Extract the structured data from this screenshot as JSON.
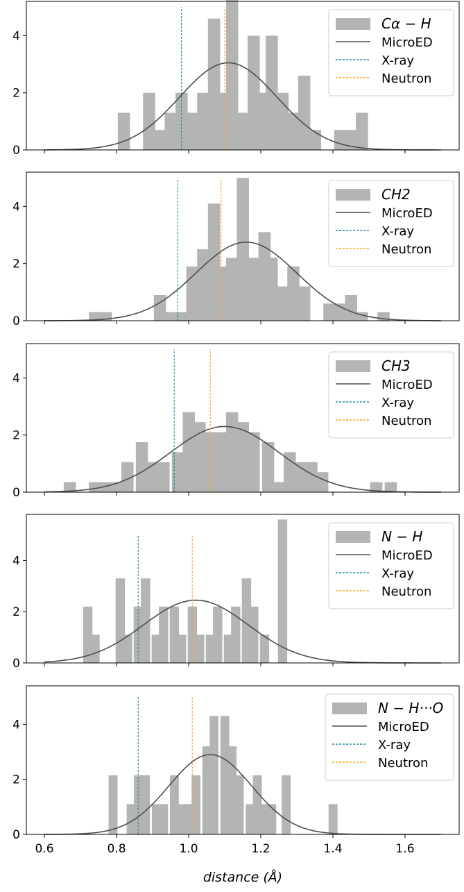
{
  "xlabel": "distance (Å)",
  "legend_common": [
    "MicroED",
    "X-ray",
    "Neutron"
  ],
  "colors": {
    "hist": "#b4b4b4",
    "fit": "#4d4d4d",
    "xray": "#1f8a9a",
    "neutron": "#f2a51a",
    "axis": "#000000"
  },
  "chart_data": [
    {
      "type": "bar",
      "panel_title": "Cα − H",
      "xlim": [
        0.55,
        1.75
      ],
      "ylim": [
        0,
        5.2
      ],
      "yticks": [
        0,
        2,
        4
      ],
      "bin_width": 0.033,
      "bins": [
        [
          0.82,
          1.3
        ],
        [
          0.89,
          2.0
        ],
        [
          0.92,
          0.7
        ],
        [
          0.95,
          1.3
        ],
        [
          0.98,
          2.0
        ],
        [
          1.01,
          1.3
        ],
        [
          1.04,
          2.0
        ],
        [
          1.07,
          4.6
        ],
        [
          1.09,
          2.0
        ],
        [
          1.12,
          5.3
        ],
        [
          1.15,
          1.3
        ],
        [
          1.18,
          4.0
        ],
        [
          1.21,
          2.0
        ],
        [
          1.23,
          4.0
        ],
        [
          1.26,
          2.0
        ],
        [
          1.29,
          1.3
        ],
        [
          1.32,
          2.6
        ],
        [
          1.35,
          0.7
        ],
        [
          1.42,
          0.7
        ],
        [
          1.45,
          0.7
        ],
        [
          1.48,
          1.3
        ]
      ],
      "gauss": {
        "mu": 1.11,
        "sigma": 0.135,
        "peak": 3.05
      },
      "xray_line": {
        "x": 0.98,
        "top": 5.0
      },
      "neutron_line": {
        "x": 1.1,
        "top": 5.0
      },
      "legend": [
        "Cα − H",
        "MicroED",
        "X-ray",
        "Neutron"
      ]
    },
    {
      "type": "bar",
      "panel_title": "CH2",
      "xlim": [
        0.55,
        1.75
      ],
      "ylim": [
        0,
        5.2
      ],
      "yticks": [
        0,
        2,
        4
      ],
      "bin_width": 0.033,
      "bins": [
        [
          0.74,
          0.3
        ],
        [
          0.77,
          0.3
        ],
        [
          0.92,
          0.9
        ],
        [
          0.95,
          0.3
        ],
        [
          0.98,
          0.3
        ],
        [
          1.01,
          1.9
        ],
        [
          1.04,
          2.5
        ],
        [
          1.07,
          4.1
        ],
        [
          1.09,
          1.9
        ],
        [
          1.12,
          2.2
        ],
        [
          1.15,
          5.0
        ],
        [
          1.18,
          2.2
        ],
        [
          1.21,
          3.1
        ],
        [
          1.23,
          2.2
        ],
        [
          1.26,
          1.2
        ],
        [
          1.29,
          1.9
        ],
        [
          1.32,
          1.2
        ],
        [
          1.39,
          0.6
        ],
        [
          1.42,
          0.6
        ],
        [
          1.45,
          0.9
        ],
        [
          1.48,
          0.3
        ],
        [
          1.54,
          0.3
        ]
      ],
      "gauss": {
        "mu": 1.16,
        "sigma": 0.14,
        "peak": 2.75
      },
      "xray_line": {
        "x": 0.97,
        "top": 5.0
      },
      "neutron_line": {
        "x": 1.09,
        "top": 5.0
      },
      "legend": [
        "CH2",
        "MicroED",
        "X-ray",
        "Neutron"
      ]
    },
    {
      "type": "bar",
      "panel_title": "CH3",
      "xlim": [
        0.55,
        1.75
      ],
      "ylim": [
        0,
        5.2
      ],
      "yticks": [
        0,
        2,
        4
      ],
      "bin_width": 0.033,
      "bins": [
        [
          0.67,
          0.35
        ],
        [
          0.74,
          0.35
        ],
        [
          0.77,
          0.35
        ],
        [
          0.8,
          0.35
        ],
        [
          0.83,
          1.05
        ],
        [
          0.87,
          1.75
        ],
        [
          0.9,
          1.05
        ],
        [
          0.93,
          1.05
        ],
        [
          0.97,
          1.4
        ],
        [
          1.0,
          2.8
        ],
        [
          1.03,
          2.45
        ],
        [
          1.06,
          2.1
        ],
        [
          1.09,
          2.1
        ],
        [
          1.12,
          2.8
        ],
        [
          1.15,
          2.45
        ],
        [
          1.18,
          2.1
        ],
        [
          1.22,
          1.75
        ],
        [
          1.25,
          0.35
        ],
        [
          1.28,
          1.4
        ],
        [
          1.31,
          1.05
        ],
        [
          1.34,
          1.05
        ],
        [
          1.37,
          0.7
        ],
        [
          1.52,
          0.35
        ],
        [
          1.56,
          0.35
        ]
      ],
      "gauss": {
        "mu": 1.1,
        "sigma": 0.15,
        "peak": 2.3
      },
      "xray_line": {
        "x": 0.96,
        "top": 5.0
      },
      "neutron_line": {
        "x": 1.06,
        "top": 5.0
      },
      "legend": [
        "CH3",
        "MicroED",
        "X-ray",
        "Neutron"
      ]
    },
    {
      "type": "bar",
      "panel_title": "N − H",
      "xlim": [
        0.55,
        1.75
      ],
      "ylim": [
        0,
        5.8
      ],
      "yticks": [
        0,
        2,
        4
      ],
      "bin_width": 0.025,
      "bins": [
        [
          0.72,
          2.2
        ],
        [
          0.74,
          1.1
        ],
        [
          0.81,
          3.3
        ],
        [
          0.83,
          1.1
        ],
        [
          0.86,
          2.2
        ],
        [
          0.88,
          3.3
        ],
        [
          0.91,
          1.1
        ],
        [
          0.93,
          2.2
        ],
        [
          0.96,
          2.2
        ],
        [
          0.98,
          1.1
        ],
        [
          1.01,
          2.2
        ],
        [
          1.03,
          1.1
        ],
        [
          1.06,
          1.1
        ],
        [
          1.08,
          2.2
        ],
        [
          1.11,
          1.1
        ],
        [
          1.13,
          2.2
        ],
        [
          1.16,
          3.3
        ],
        [
          1.18,
          2.2
        ],
        [
          1.21,
          1.1
        ],
        [
          1.26,
          5.6
        ]
      ],
      "gauss": {
        "mu": 1.02,
        "sigma": 0.145,
        "peak": 2.45
      },
      "xray_line": {
        "x": 0.86,
        "top": 5.0
      },
      "neutron_line": {
        "x": 1.01,
        "top": 5.0
      },
      "legend": [
        "N − H",
        "MicroED",
        "X-ray",
        "Neutron"
      ]
    },
    {
      "type": "bar",
      "panel_title": "N − H···O",
      "xlim": [
        0.55,
        1.75
      ],
      "ylim": [
        0,
        5.4
      ],
      "yticks": [
        0,
        2,
        4
      ],
      "bin_width": 0.024,
      "bins": [
        [
          0.79,
          2.15
        ],
        [
          0.84,
          1.1
        ],
        [
          0.86,
          2.15
        ],
        [
          0.88,
          2.15
        ],
        [
          0.91,
          1.1
        ],
        [
          0.93,
          1.1
        ],
        [
          0.96,
          2.15
        ],
        [
          0.98,
          1.1
        ],
        [
          1.0,
          1.1
        ],
        [
          1.02,
          2.15
        ],
        [
          1.05,
          3.2
        ],
        [
          1.07,
          4.3
        ],
        [
          1.1,
          4.3
        ],
        [
          1.12,
          3.2
        ],
        [
          1.14,
          2.15
        ],
        [
          1.17,
          1.1
        ],
        [
          1.19,
          2.15
        ],
        [
          1.21,
          1.1
        ],
        [
          1.23,
          1.1
        ],
        [
          1.27,
          2.15
        ],
        [
          1.4,
          1.1
        ]
      ],
      "gauss": {
        "mu": 1.06,
        "sigma": 0.115,
        "peak": 2.9
      },
      "xray_line": {
        "x": 0.86,
        "top": 5.0
      },
      "neutron_line": {
        "x": 1.01,
        "top": 5.0
      },
      "legend": [
        "N − H···O",
        "MicroED",
        "X-ray",
        "Neutron"
      ]
    }
  ],
  "xticks": [
    "0.6",
    "0.8",
    "1.0",
    "1.2",
    "1.4",
    "1.6"
  ],
  "xtick_values": [
    0.6,
    0.8,
    1.0,
    1.2,
    1.4,
    1.6
  ]
}
